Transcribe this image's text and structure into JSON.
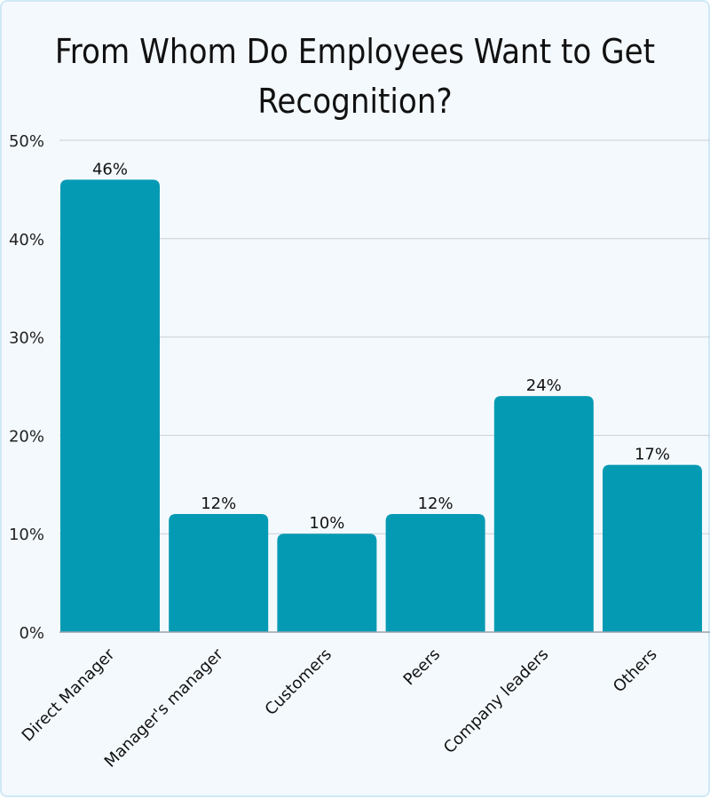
{
  "chart_data": {
    "type": "bar",
    "title_line1": "From Whom Do Employees Want to Get",
    "title_line2": "Recognition?",
    "categories": [
      "Direct Manager",
      "Manager's manager",
      "Customers",
      "Peers",
      "Company leaders",
      "Others"
    ],
    "values": [
      46,
      12,
      10,
      12,
      24,
      17
    ],
    "data_labels": [
      "46%",
      "12%",
      "10%",
      "12%",
      "24%",
      "17%"
    ],
    "yticks": [
      0,
      10,
      20,
      30,
      40,
      50
    ],
    "ytick_labels": [
      "0%",
      "10%",
      "20%",
      "30%",
      "40%",
      "50%"
    ],
    "ylim": [
      0,
      50
    ],
    "grid": true,
    "bar_color": "#049ab3",
    "grid_color": "#c8d0d8"
  }
}
